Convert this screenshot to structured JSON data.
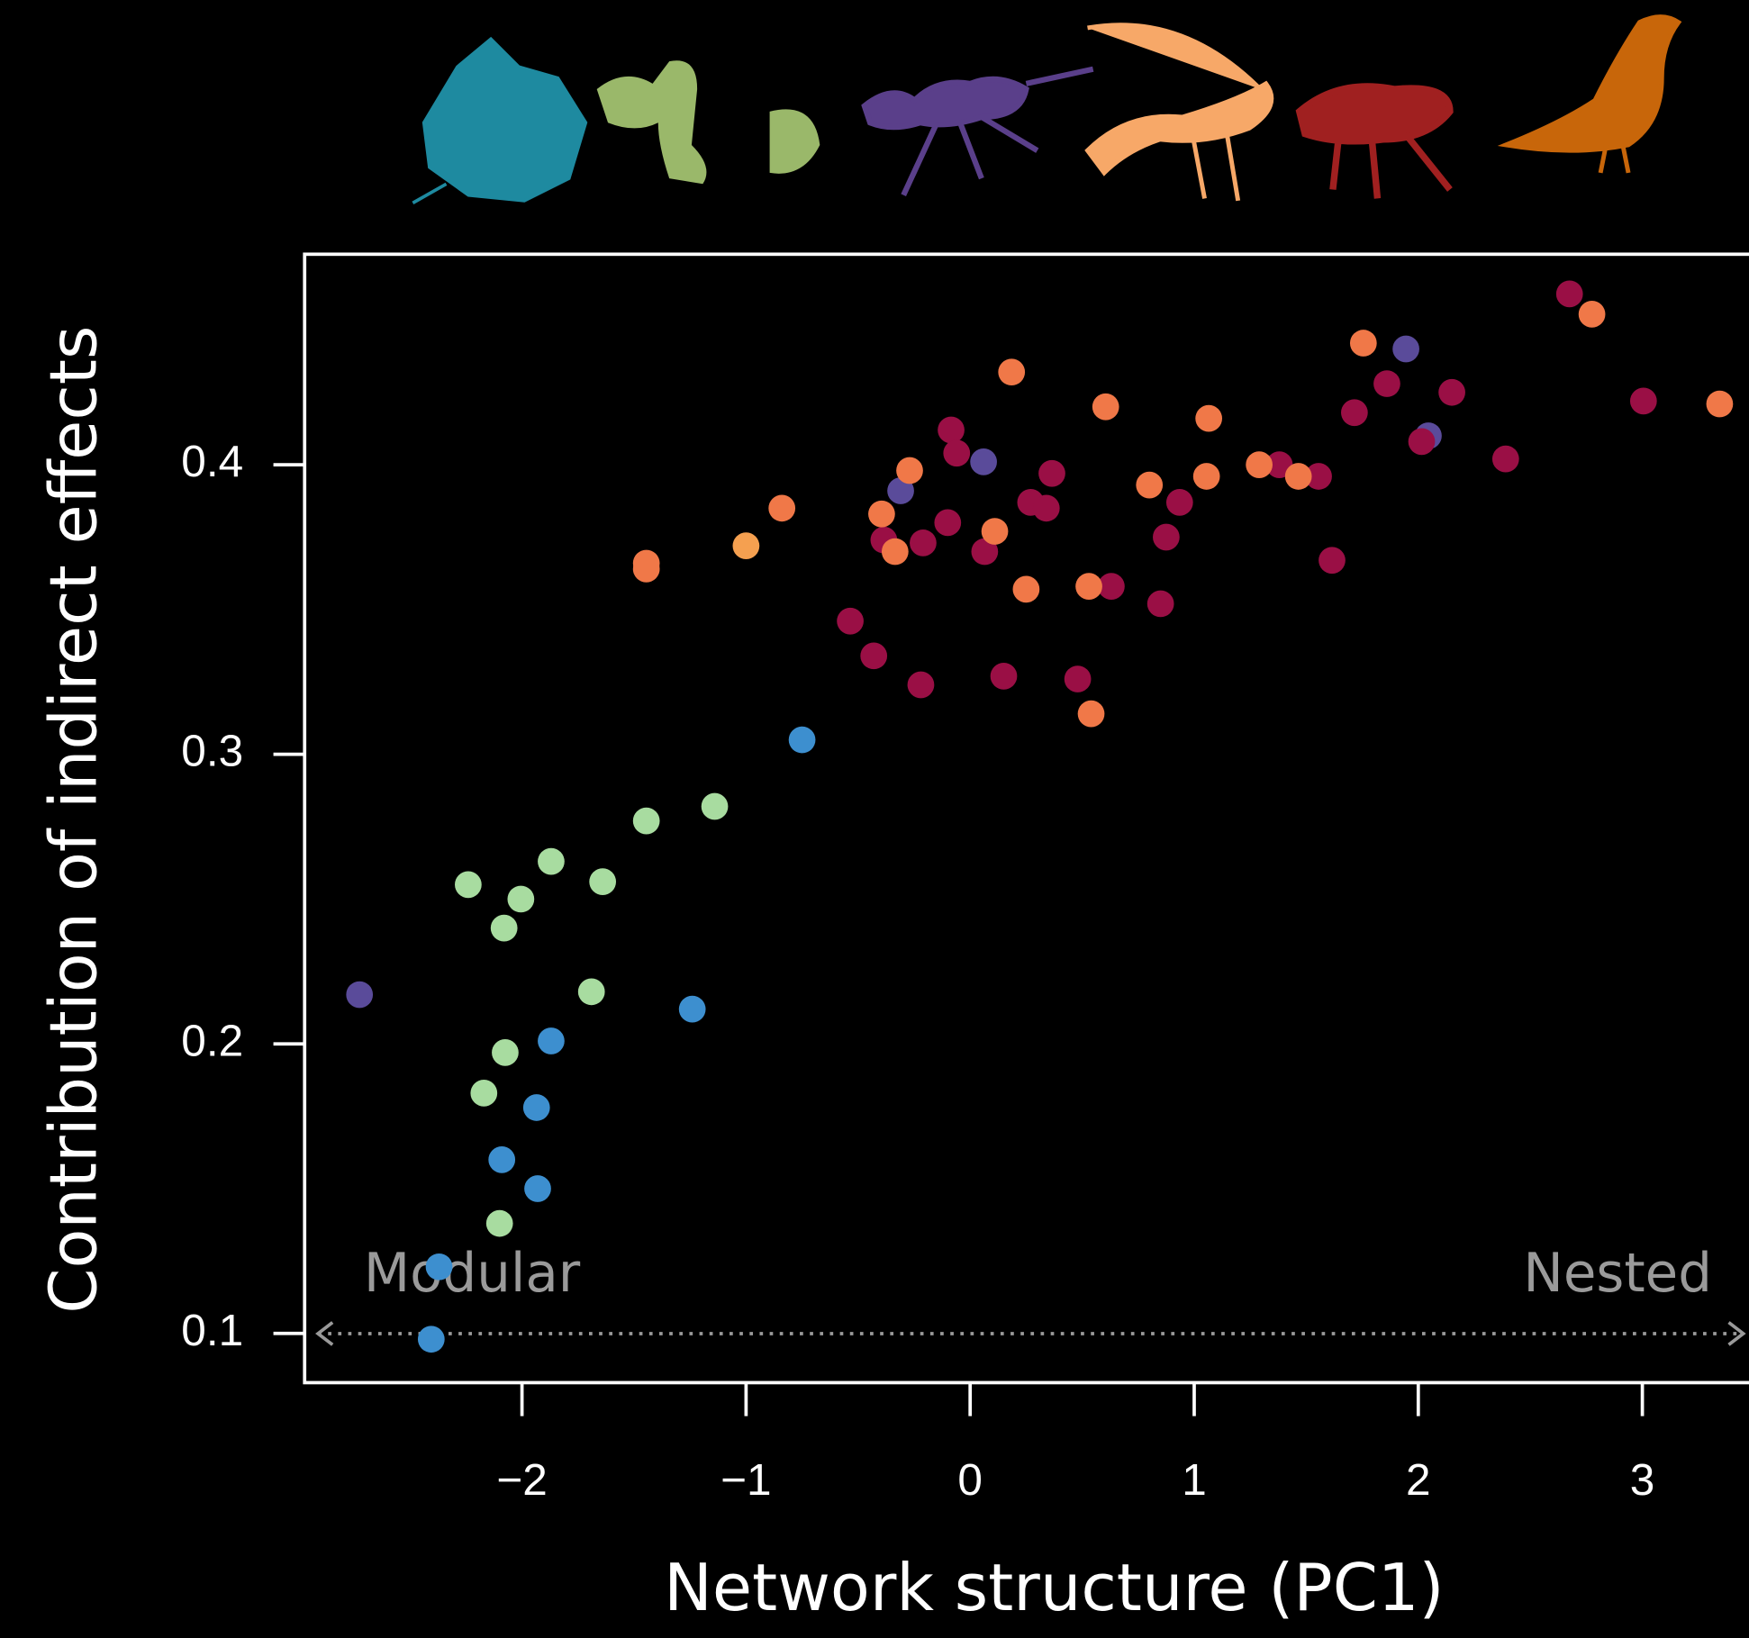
{
  "chart_data": {
    "type": "scatter",
    "x_label": "Network structure (PC1)",
    "y_label": "Contribution of indirect effects",
    "annotations": [
      "Modular",
      "Nested"
    ],
    "xlim": [
      -2.97,
      3.5
    ],
    "ylim": [
      0.083,
      0.4727
    ],
    "xticks": [
      {
        "value": -2,
        "label": "−2"
      },
      {
        "value": -1,
        "label": "−1"
      },
      0,
      1,
      2,
      3
    ],
    "yticks": [
      0.1,
      0.2,
      0.3,
      0.4
    ],
    "series": [
      {
        "color": "#a8dca0",
        "x": [
          -2.24,
          -2.005,
          -2.08,
          -1.87,
          -1.64,
          -1.445,
          -1.14,
          -1.69,
          -2.075,
          -2.17,
          -2.1
        ],
        "values": [
          0.255,
          0.25,
          0.24,
          0.263,
          0.256,
          0.277,
          0.282,
          0.218,
          0.197,
          0.183,
          0.138
        ]
      },
      {
        "color": "#3d8fcf",
        "x": [
          -0.75,
          -1.24,
          -1.87,
          -1.935,
          -2.09,
          -1.93,
          -2.37,
          -2.405
        ],
        "values": [
          0.305,
          0.212,
          0.201,
          0.178,
          0.16,
          0.15,
          0.123,
          0.098
        ]
      },
      {
        "color": "#5a4b9a",
        "x": [
          -2.725,
          0.06,
          1.945,
          2.045,
          -0.31
        ],
        "values": [
          0.217,
          0.401,
          0.44,
          0.41,
          0.391
        ]
      },
      {
        "color": "#9a0f45",
        "x": [
          -0.535,
          -0.43,
          -0.22,
          -0.21,
          -0.385,
          -0.1,
          -0.085,
          -0.06,
          0.065,
          0.15,
          0.27,
          0.34,
          0.365,
          0.48,
          0.63,
          0.85,
          0.875,
          0.935,
          1.38,
          1.555,
          1.615,
          1.715,
          1.86,
          2.015,
          2.15,
          2.39,
          2.675,
          3.005
        ],
        "values": [
          0.346,
          0.334,
          0.324,
          0.373,
          0.374,
          0.38,
          0.412,
          0.404,
          0.37,
          0.327,
          0.387,
          0.385,
          0.397,
          0.326,
          0.358,
          0.352,
          0.375,
          0.387,
          0.4,
          0.396,
          0.367,
          0.418,
          0.428,
          0.408,
          0.425,
          0.402,
          0.459,
          0.422
        ]
      },
      {
        "color": "#f07848",
        "x": [
          -0.84,
          -1.445,
          -1.445,
          -0.395,
          -0.335,
          -0.27,
          0.11,
          0.185,
          0.25,
          0.53,
          0.54,
          0.605,
          0.8,
          1.065,
          1.055,
          1.29,
          1.465,
          1.755,
          2.775,
          3.345
        ],
        "values": [
          0.385,
          0.364,
          0.366,
          0.383,
          0.37,
          0.398,
          0.377,
          0.432,
          0.357,
          0.358,
          0.314,
          0.42,
          0.393,
          0.416,
          0.396,
          0.4,
          0.396,
          0.442,
          0.452,
          0.421
        ]
      },
      {
        "color": "#f5a050",
        "x": [
          -1.0
        ],
        "values": [
          0.372
        ]
      }
    ]
  }
}
